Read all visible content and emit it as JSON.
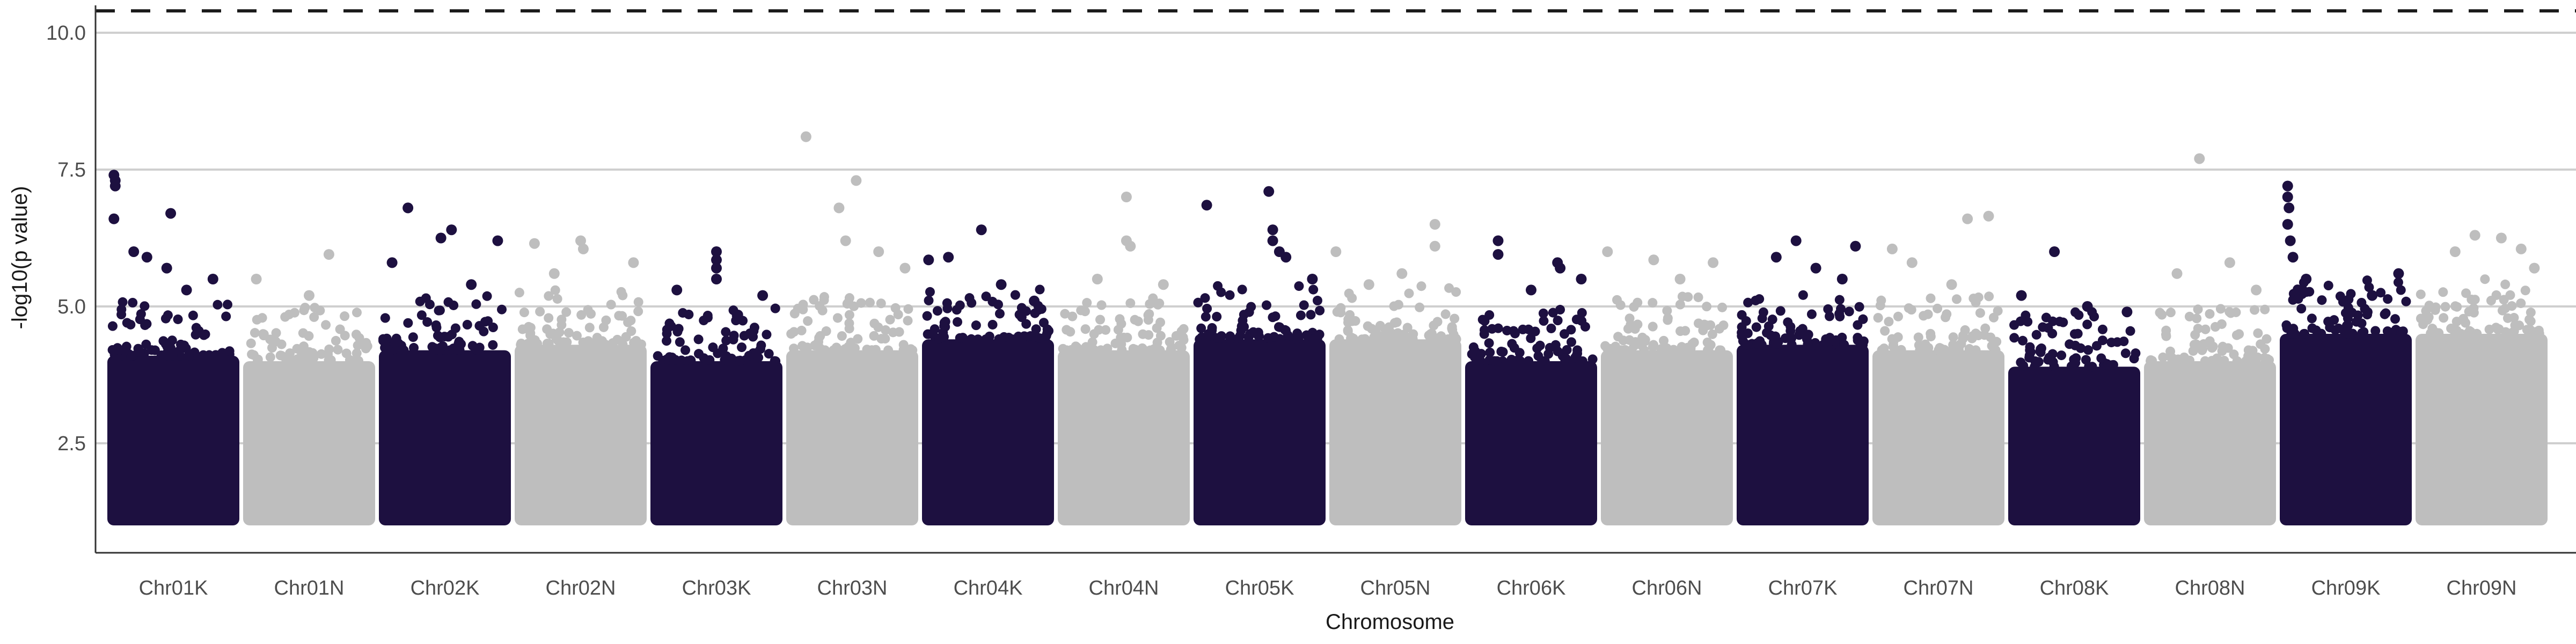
{
  "chart_data": {
    "type": "scatter",
    "subtype": "manhattan",
    "title": "",
    "xlabel": "Chromosome",
    "ylabel": "-log10(p value)",
    "ylim": [
      0.5,
      10.5
    ],
    "yticks": [
      2.5,
      5.0,
      7.5,
      10.0
    ],
    "ytick_labels": [
      "2.5",
      "5.0",
      "7.5",
      "10.0"
    ],
    "grid": "horizontal major",
    "legend": "none",
    "colors": {
      "dark": "#1d1040",
      "light": "#bebebe",
      "threshold": "#1a1a1a",
      "grid": "#cfcfcf",
      "axis": "#333333"
    },
    "threshold": {
      "y": 10.4,
      "style": "dashed"
    },
    "point_floor": 1.0,
    "categories": [
      "Chr01K",
      "Chr01N",
      "Chr02K",
      "Chr02N",
      "Chr03K",
      "Chr03N",
      "Chr04K",
      "Chr04N",
      "Chr05K",
      "Chr05N",
      "Chr06K",
      "Chr06N",
      "Chr07K",
      "Chr07N",
      "Chr08K",
      "Chr08N",
      "Chr09K",
      "Chr09N"
    ],
    "series": [
      {
        "chromosome": "Chr01K",
        "color": "dark",
        "dense_top": 4.1,
        "peaks": [
          [
            0.05,
            7.4
          ],
          [
            0.06,
            7.3
          ],
          [
            0.06,
            7.2
          ],
          [
            0.05,
            6.6
          ],
          [
            0.48,
            6.7
          ],
          [
            0.2,
            6.0
          ],
          [
            0.3,
            5.9
          ],
          [
            0.45,
            5.7
          ],
          [
            0.8,
            5.5
          ],
          [
            0.6,
            5.3
          ]
        ]
      },
      {
        "chromosome": "Chr01N",
        "color": "light",
        "dense_top": 4.0,
        "peaks": [
          [
            0.65,
            5.95
          ],
          [
            0.1,
            5.5
          ],
          [
            0.5,
            5.2
          ]
        ]
      },
      {
        "chromosome": "Chr02K",
        "color": "dark",
        "dense_top": 4.2,
        "peaks": [
          [
            0.22,
            6.8
          ],
          [
            0.55,
            6.4
          ],
          [
            0.47,
            6.25
          ],
          [
            0.9,
            6.2
          ],
          [
            0.1,
            5.8
          ],
          [
            0.7,
            5.4
          ]
        ]
      },
      {
        "chromosome": "Chr02N",
        "color": "light",
        "dense_top": 4.3,
        "peaks": [
          [
            0.15,
            6.15
          ],
          [
            0.5,
            6.2
          ],
          [
            0.52,
            6.05
          ],
          [
            0.9,
            5.8
          ],
          [
            0.3,
            5.6
          ]
        ]
      },
      {
        "chromosome": "Chr03K",
        "color": "dark",
        "dense_top": 4.0,
        "peaks": [
          [
            0.5,
            6.0
          ],
          [
            0.5,
            5.85
          ],
          [
            0.5,
            5.7
          ],
          [
            0.5,
            5.5
          ],
          [
            0.2,
            5.3
          ],
          [
            0.85,
            5.2
          ]
        ]
      },
      {
        "chromosome": "Chr03N",
        "color": "light",
        "dense_top": 4.2,
        "peaks": [
          [
            0.15,
            8.1
          ],
          [
            0.53,
            7.3
          ],
          [
            0.4,
            6.8
          ],
          [
            0.45,
            6.2
          ],
          [
            0.7,
            6.0
          ],
          [
            0.9,
            5.7
          ]
        ]
      },
      {
        "chromosome": "Chr04K",
        "color": "dark",
        "dense_top": 4.4,
        "peaks": [
          [
            0.45,
            6.4
          ],
          [
            0.2,
            5.9
          ],
          [
            0.05,
            5.85
          ],
          [
            0.6,
            5.4
          ],
          [
            0.85,
            5.1
          ]
        ]
      },
      {
        "chromosome": "Chr04N",
        "color": "light",
        "dense_top": 4.2,
        "peaks": [
          [
            0.52,
            7.0
          ],
          [
            0.52,
            6.2
          ],
          [
            0.55,
            6.1
          ],
          [
            0.3,
            5.5
          ],
          [
            0.8,
            5.4
          ]
        ]
      },
      {
        "chromosome": "Chr05K",
        "color": "dark",
        "dense_top": 4.4,
        "peaks": [
          [
            0.1,
            6.85
          ],
          [
            0.57,
            7.1
          ],
          [
            0.6,
            6.4
          ],
          [
            0.6,
            6.2
          ],
          [
            0.65,
            6.0
          ],
          [
            0.7,
            5.9
          ],
          [
            0.9,
            5.5
          ]
        ]
      },
      {
        "chromosome": "Chr05N",
        "color": "light",
        "dense_top": 4.4,
        "peaks": [
          [
            0.8,
            6.5
          ],
          [
            0.05,
            6.0
          ],
          [
            0.8,
            6.1
          ],
          [
            0.55,
            5.6
          ],
          [
            0.3,
            5.4
          ]
        ]
      },
      {
        "chromosome": "Chr06K",
        "color": "dark",
        "dense_top": 4.0,
        "peaks": [
          [
            0.25,
            6.2
          ],
          [
            0.7,
            5.8
          ],
          [
            0.72,
            5.7
          ],
          [
            0.25,
            5.95
          ],
          [
            0.88,
            5.5
          ],
          [
            0.5,
            5.3
          ]
        ]
      },
      {
        "chromosome": "Chr06N",
        "color": "light",
        "dense_top": 4.2,
        "peaks": [
          [
            0.05,
            6.0
          ],
          [
            0.4,
            5.85
          ],
          [
            0.85,
            5.8
          ],
          [
            0.6,
            5.5
          ]
        ]
      },
      {
        "chromosome": "Chr07K",
        "color": "dark",
        "dense_top": 4.3,
        "peaks": [
          [
            0.45,
            6.2
          ],
          [
            0.3,
            5.9
          ],
          [
            0.9,
            6.1
          ],
          [
            0.6,
            5.7
          ],
          [
            0.8,
            5.5
          ]
        ]
      },
      {
        "chromosome": "Chr07N",
        "color": "light",
        "dense_top": 4.2,
        "peaks": [
          [
            0.15,
            6.05
          ],
          [
            0.72,
            6.6
          ],
          [
            0.88,
            6.65
          ],
          [
            0.3,
            5.8
          ],
          [
            0.6,
            5.4
          ]
        ]
      },
      {
        "chromosome": "Chr08K",
        "color": "dark",
        "dense_top": 3.9,
        "peaks": [
          [
            0.35,
            6.0
          ],
          [
            0.1,
            5.2
          ],
          [
            0.6,
            5.0
          ],
          [
            0.9,
            4.9
          ]
        ]
      },
      {
        "chromosome": "Chr08N",
        "color": "light",
        "dense_top": 4.0,
        "peaks": [
          [
            0.42,
            7.7
          ],
          [
            0.25,
            5.6
          ],
          [
            0.65,
            5.8
          ],
          [
            0.85,
            5.3
          ]
        ]
      },
      {
        "chromosome": "Chr09K",
        "color": "dark",
        "dense_top": 4.5,
        "peaks": [
          [
            0.06,
            7.2
          ],
          [
            0.06,
            7.0
          ],
          [
            0.07,
            6.8
          ],
          [
            0.06,
            6.5
          ],
          [
            0.08,
            6.2
          ],
          [
            0.1,
            5.9
          ],
          [
            0.2,
            5.5
          ],
          [
            0.9,
            5.6
          ],
          [
            0.7,
            5.2
          ]
        ]
      },
      {
        "chromosome": "Chr09N",
        "color": "light",
        "dense_top": 4.5,
        "peaks": [
          [
            0.45,
            6.3
          ],
          [
            0.65,
            6.25
          ],
          [
            0.8,
            6.05
          ],
          [
            0.3,
            6.0
          ],
          [
            0.9,
            5.7
          ]
        ]
      }
    ]
  }
}
